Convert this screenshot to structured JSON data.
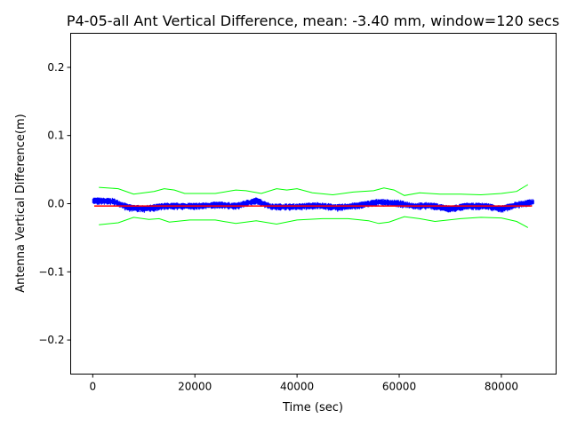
{
  "chart_data": {
    "type": "line",
    "title": "P4-05-all Ant Vertical Difference, mean: -3.40 mm, window=120 secs",
    "xlabel": "Time (sec)",
    "ylabel": "Antenna Vertical Difference(m)",
    "xlim": [
      -4320,
      90720
    ],
    "ylim": [
      -0.25,
      0.25
    ],
    "xticks": [
      0,
      20000,
      40000,
      60000,
      80000
    ],
    "xtick_labels": [
      "0",
      "20000",
      "40000",
      "60000",
      "80000"
    ],
    "yticks": [
      0.2,
      0.1,
      0.0,
      -0.1,
      -0.2
    ],
    "ytick_labels": [
      "0.2",
      "0.1",
      "0.0",
      "−0.1",
      "−0.2"
    ],
    "grid": false,
    "colors": {
      "data": "#0000ff",
      "mean": "#ff0000",
      "bounds": "#00ff00"
    },
    "series": [
      {
        "role": "data",
        "color": "#0000ff",
        "spread": 0.005,
        "points": [
          [
            0,
            0.004
          ],
          [
            4000,
            0.003
          ],
          [
            7000,
            -0.006
          ],
          [
            10000,
            -0.008
          ],
          [
            14000,
            -0.004
          ],
          [
            20000,
            -0.004
          ],
          [
            25000,
            -0.002
          ],
          [
            28000,
            -0.004
          ],
          [
            32000,
            0.004
          ],
          [
            35000,
            -0.005
          ],
          [
            40000,
            -0.005
          ],
          [
            44000,
            -0.003
          ],
          [
            48000,
            -0.006
          ],
          [
            52000,
            -0.003
          ],
          [
            56000,
            0.002
          ],
          [
            60000,
            0.0
          ],
          [
            63000,
            -0.004
          ],
          [
            66000,
            -0.003
          ],
          [
            70000,
            -0.008
          ],
          [
            73000,
            -0.004
          ],
          [
            77000,
            -0.004
          ],
          [
            80000,
            -0.008
          ],
          [
            83000,
            -0.002
          ],
          [
            86400,
            0.002
          ]
        ]
      },
      {
        "role": "mean",
        "color": "#ff0000",
        "points": [
          [
            300,
            -0.0034
          ],
          [
            86000,
            -0.0034
          ]
        ]
      },
      {
        "role": "upper",
        "color": "#00ff00",
        "points": [
          [
            1200,
            0.024
          ],
          [
            5000,
            0.022
          ],
          [
            8000,
            0.014
          ],
          [
            12000,
            0.018
          ],
          [
            14000,
            0.022
          ],
          [
            16000,
            0.02
          ],
          [
            18000,
            0.015
          ],
          [
            24000,
            0.015
          ],
          [
            28000,
            0.02
          ],
          [
            30000,
            0.019
          ],
          [
            33000,
            0.015
          ],
          [
            36000,
            0.022
          ],
          [
            38000,
            0.02
          ],
          [
            40000,
            0.022
          ],
          [
            43000,
            0.016
          ],
          [
            47000,
            0.013
          ],
          [
            51000,
            0.017
          ],
          [
            55000,
            0.019
          ],
          [
            57000,
            0.023
          ],
          [
            59000,
            0.02
          ],
          [
            61000,
            0.012
          ],
          [
            64000,
            0.016
          ],
          [
            68000,
            0.014
          ],
          [
            72000,
            0.014
          ],
          [
            76000,
            0.013
          ],
          [
            80000,
            0.015
          ],
          [
            83000,
            0.018
          ],
          [
            85200,
            0.028
          ]
        ]
      },
      {
        "role": "lower",
        "color": "#00ff00",
        "points": [
          [
            1200,
            -0.031
          ],
          [
            5000,
            -0.028
          ],
          [
            8000,
            -0.02
          ],
          [
            11000,
            -0.023
          ],
          [
            13000,
            -0.022
          ],
          [
            15000,
            -0.027
          ],
          [
            19000,
            -0.024
          ],
          [
            24000,
            -0.024
          ],
          [
            28000,
            -0.029
          ],
          [
            32000,
            -0.025
          ],
          [
            36000,
            -0.03
          ],
          [
            40000,
            -0.024
          ],
          [
            45000,
            -0.022
          ],
          [
            50000,
            -0.022
          ],
          [
            54000,
            -0.025
          ],
          [
            56000,
            -0.029
          ],
          [
            58000,
            -0.027
          ],
          [
            61000,
            -0.019
          ],
          [
            64000,
            -0.022
          ],
          [
            67000,
            -0.026
          ],
          [
            72000,
            -0.022
          ],
          [
            76000,
            -0.02
          ],
          [
            80000,
            -0.021
          ],
          [
            83000,
            -0.026
          ],
          [
            85200,
            -0.035
          ]
        ]
      }
    ]
  }
}
